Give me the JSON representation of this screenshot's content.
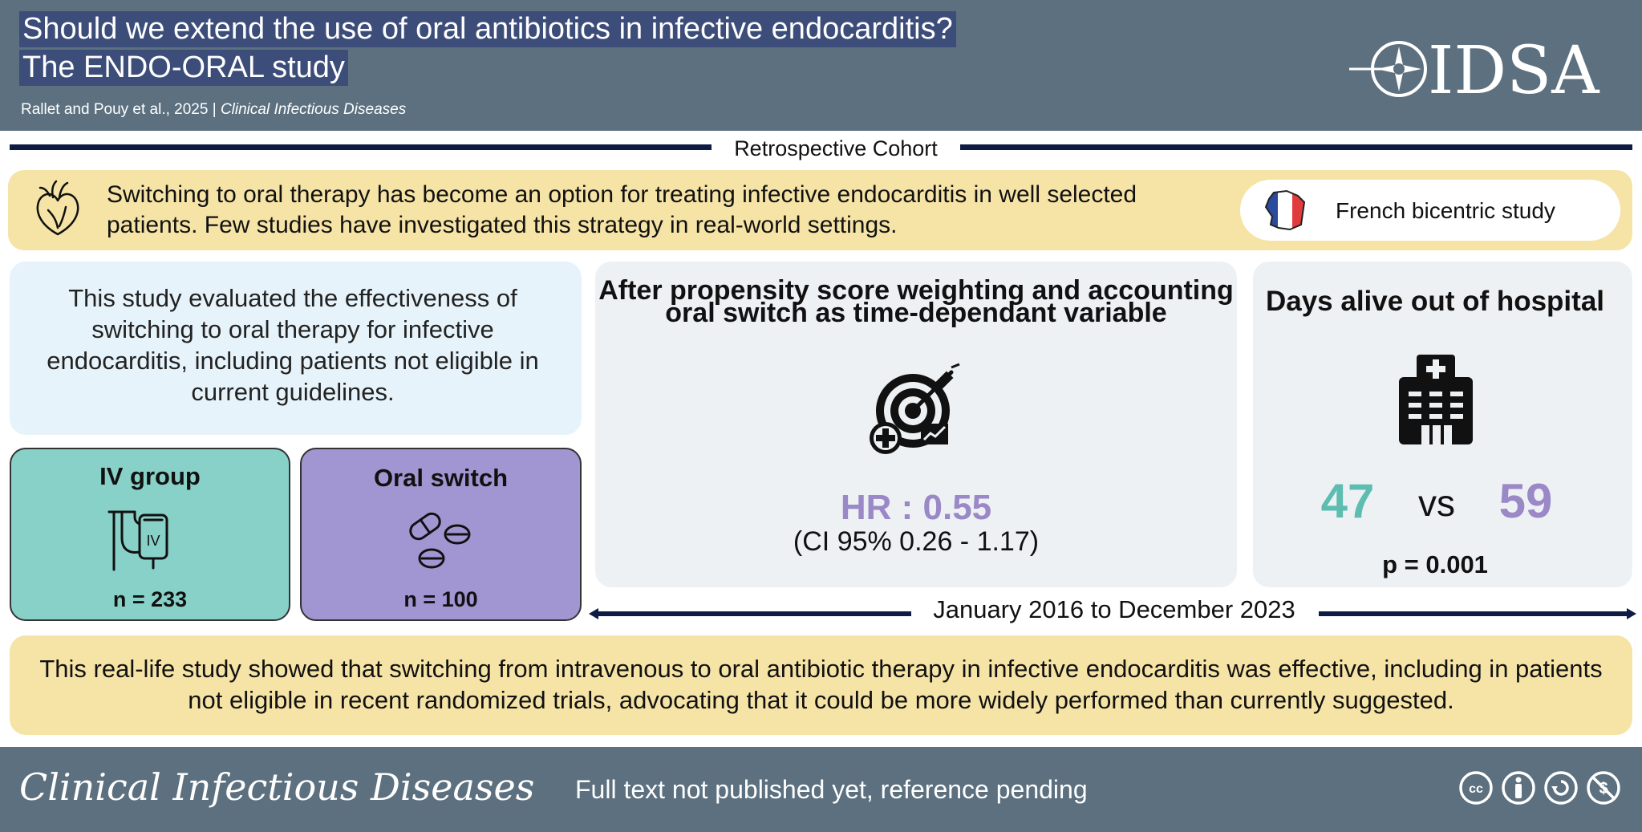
{
  "header": {
    "title_line1": "Should we extend the use of oral antibiotics in infective endocarditis?",
    "title_line2": "The ENDO-ORAL study",
    "authors": "Rallet and Pouy et al., 2025",
    "separator": "|",
    "journal": "Clinical Infectious Diseases",
    "logo_text": "IDSA"
  },
  "design_band": "Retrospective Cohort",
  "intro": {
    "text": "Switching to oral therapy has become an option for treating infective endocarditis in well selected patients. Few studies have investigated this strategy in real-world settings.",
    "heart_icon": "heart-icon",
    "pill_text": "French bicentric study",
    "flag_icon": "france-map-icon"
  },
  "evaluation": {
    "text": "This study evaluated the effectiveness of switching to oral therapy for infective endocarditis, including patients not eligible in current guidelines."
  },
  "groups": [
    {
      "title": "IV group",
      "n": "n = 233",
      "icon": "iv-bag-icon",
      "icon_label": "IV",
      "color": "#88d1c8"
    },
    {
      "title": "Oral switch",
      "n": "n = 100",
      "icon": "pills-icon",
      "color": "#a196d2"
    }
  ],
  "hazard": {
    "heading": "After propensity score weighting and accounting oral switch as time-dependant variable",
    "icon": "target-syringe-icon",
    "hr": "HR : 0.55",
    "ci": "(CI 95% 0.26 - 1.17)"
  },
  "days": {
    "heading": "Days alive out of hospital",
    "icon": "hospital-icon",
    "iv_value": "47",
    "vs": "vs",
    "oral_value": "59",
    "p": "p = 0.001"
  },
  "period": "January 2016 to December 2023",
  "conclusion": "This real-life study showed that switching from intravenous to oral antibiotic therapy in infective endocarditis was effective, including in patients not eligible in recent randomized trials, advocating that it could be more widely performed than currently suggested.",
  "footer": {
    "journal": "Clinical Infectious Diseases",
    "note": "Full text not published yet, reference pending",
    "license_icons": [
      "cc-icon",
      "by-icon",
      "sharealike-icon",
      "noncommercial-icon"
    ]
  },
  "colors": {
    "header_bg": "#5c707f",
    "title_highlight": "#3d4d7a",
    "band_line": "#0e1b45",
    "yellow_card": "#f6e4a6",
    "iv_teal": "#88d1c8",
    "oral_purple": "#a196d2",
    "hr_purple": "#9a88c7",
    "days_teal": "#5cbdb0"
  }
}
